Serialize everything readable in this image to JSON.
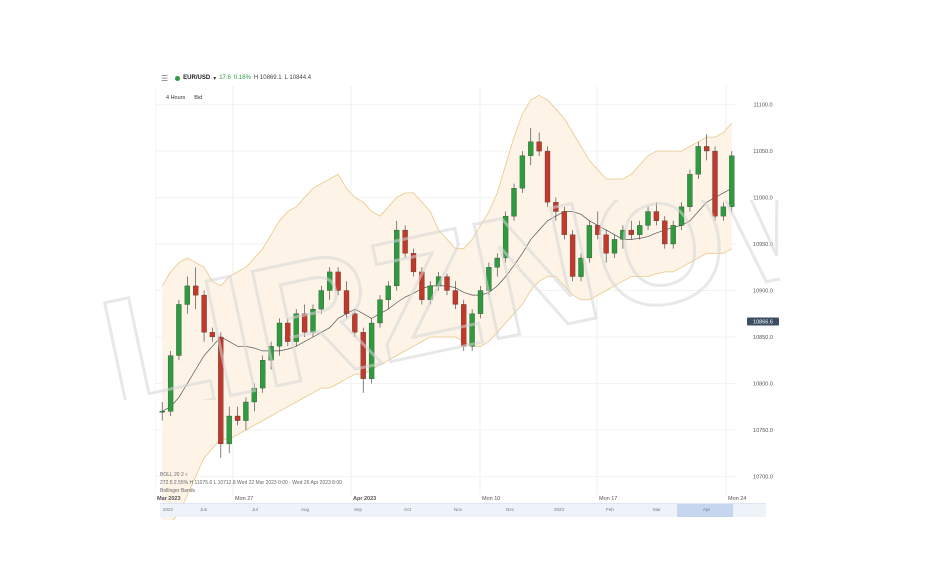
{
  "header": {
    "symbol": "EUR/USD",
    "change": "17.6",
    "change_pct": "0.16%",
    "high": "H 10869.1",
    "low": "L 10844.4"
  },
  "timeframe": {
    "interval": "4 Hours",
    "price_type": "Bid"
  },
  "price_axis": {
    "labels": [
      "11100.0",
      "11050.0",
      "11000.0",
      "10950.0",
      "10900.0",
      "10850.0",
      "10800.0",
      "10750.0",
      "10700.0"
    ],
    "current_price": "10866.6"
  },
  "time_axis": {
    "labels": [
      "Mar 2023",
      "Mon 27",
      "Apr 2023",
      "Mon 10",
      "Mon 17",
      "Mon 24"
    ]
  },
  "boll_legend": {
    "name": "BOLL",
    "period": "20",
    "mult": "2",
    "close_label": "x",
    "range_prefix": "272.5",
    "range_pct": "2.55%",
    "high": "H 11075.6",
    "low": "L 10712.8",
    "dates": "Wed 22 Mar 2023 0:00 - Wed 26 Apr 2023 8:00",
    "note": "Bollinger Bands"
  },
  "navigator": {
    "labels": [
      "2022",
      "Jun",
      "Jul",
      "Aug",
      "Sep",
      "Oct",
      "Nov",
      "Dec",
      "2023",
      "Feb",
      "Mar",
      "Apr"
    ]
  },
  "watermark": {
    "text": "LIRZNOW"
  },
  "colors": {
    "up": "#2e9b3f",
    "down": "#c0392b",
    "band": "#e8c98a",
    "band_fill": "#fdf3e7",
    "middle": "#555555"
  },
  "chart_data": {
    "type": "candlestick",
    "title": "",
    "ylim": [
      10680,
      11120
    ],
    "indicator": "Bollinger Bands (20, 2)",
    "candles": [
      [
        10770,
        10780,
        10760,
        10770
      ],
      [
        10770,
        10835,
        10765,
        10830
      ],
      [
        10830,
        10890,
        10825,
        10885
      ],
      [
        10885,
        10915,
        10875,
        10905
      ],
      [
        10905,
        10925,
        10880,
        10895
      ],
      [
        10895,
        10900,
        10845,
        10855
      ],
      [
        10855,
        10860,
        10845,
        10850
      ],
      [
        10850,
        10855,
        10720,
        10735
      ],
      [
        10735,
        10775,
        10725,
        10765
      ],
      [
        10765,
        10775,
        10755,
        10760
      ],
      [
        10760,
        10785,
        10750,
        10780
      ],
      [
        10780,
        10800,
        10770,
        10795
      ],
      [
        10795,
        10830,
        10790,
        10825
      ],
      [
        10825,
        10845,
        10815,
        10840
      ],
      [
        10840,
        10870,
        10830,
        10865
      ],
      [
        10865,
        10870,
        10840,
        10845
      ],
      [
        10845,
        10880,
        10840,
        10875
      ],
      [
        10875,
        10885,
        10850,
        10855
      ],
      [
        10855,
        10885,
        10850,
        10880
      ],
      [
        10880,
        10905,
        10875,
        10900
      ],
      [
        10900,
        10925,
        10890,
        10920
      ],
      [
        10920,
        10925,
        10895,
        10900
      ],
      [
        10900,
        10910,
        10870,
        10875
      ],
      [
        10875,
        10880,
        10850,
        10855
      ],
      [
        10855,
        10860,
        10790,
        10805
      ],
      [
        10805,
        10870,
        10800,
        10865
      ],
      [
        10865,
        10895,
        10860,
        10890
      ],
      [
        10890,
        10910,
        10880,
        10905
      ],
      [
        10905,
        10975,
        10900,
        10965
      ],
      [
        10965,
        10970,
        10935,
        10940
      ],
      [
        10940,
        10945,
        10915,
        10920
      ],
      [
        10920,
        10925,
        10885,
        10890
      ],
      [
        10890,
        10910,
        10885,
        10905
      ],
      [
        10905,
        10920,
        10900,
        10915
      ],
      [
        10915,
        10918,
        10895,
        10900
      ],
      [
        10900,
        10910,
        10880,
        10885
      ],
      [
        10885,
        10890,
        10835,
        10840
      ],
      [
        10840,
        10880,
        10835,
        10875
      ],
      [
        10875,
        10905,
        10870,
        10900
      ],
      [
        10900,
        10930,
        10895,
        10925
      ],
      [
        10925,
        10940,
        10915,
        10935
      ],
      [
        10935,
        10985,
        10930,
        10980
      ],
      [
        10980,
        11015,
        10975,
        11010
      ],
      [
        11010,
        11050,
        11005,
        11045
      ],
      [
        11045,
        11075,
        11035,
        11060
      ],
      [
        11060,
        11070,
        11045,
        11050
      ],
      [
        11050,
        11055,
        10990,
        10995
      ],
      [
        10995,
        11000,
        10975,
        10985
      ],
      [
        10985,
        10990,
        10955,
        10960
      ],
      [
        10960,
        10965,
        10910,
        10915
      ],
      [
        10915,
        10940,
        10910,
        10935
      ],
      [
        10935,
        10975,
        10930,
        10970
      ],
      [
        10970,
        10985,
        10955,
        10960
      ],
      [
        10960,
        10965,
        10930,
        10940
      ],
      [
        10940,
        10960,
        10935,
        10955
      ],
      [
        10955,
        10970,
        10945,
        10965
      ],
      [
        10965,
        10975,
        10955,
        10960
      ],
      [
        10960,
        10975,
        10955,
        10970
      ],
      [
        10970,
        10990,
        10965,
        10985
      ],
      [
        10985,
        10995,
        10970,
        10975
      ],
      [
        10975,
        10980,
        10945,
        10950
      ],
      [
        10950,
        10975,
        10945,
        10970
      ],
      [
        10970,
        10995,
        10965,
        10990
      ],
      [
        10990,
        11030,
        10985,
        11025
      ],
      [
        11025,
        11060,
        11020,
        11055
      ],
      [
        11055,
        11068,
        11040,
        11050
      ],
      [
        11050,
        11055,
        10975,
        10980
      ],
      [
        10980,
        10995,
        10975,
        10990
      ],
      [
        10990,
        11050,
        10985,
        11045
      ]
    ],
    "bands": {
      "upper": [
        10905,
        10920,
        10930,
        10935,
        10930,
        10925,
        10910,
        10905,
        10915,
        10920,
        10925,
        10935,
        10945,
        10960,
        10975,
        10985,
        10990,
        11000,
        11010,
        11015,
        11020,
        11025,
        11010,
        11000,
        10995,
        10985,
        10980,
        10990,
        11000,
        11005,
        11005,
        10995,
        10985,
        10965,
        10955,
        10945,
        10945,
        10955,
        10970,
        10985,
        11005,
        11035,
        11065,
        11090,
        11105,
        11110,
        11105,
        11095,
        11085,
        11070,
        11055,
        11040,
        11030,
        11020,
        11020,
        11020,
        11025,
        11035,
        11045,
        11050,
        11050,
        11050,
        11050,
        11055,
        11060,
        11065,
        11065,
        11070,
        11080
      ],
      "middle": [
        10770,
        10775,
        10785,
        10800,
        10815,
        10830,
        10840,
        10850,
        10845,
        10840,
        10840,
        10838,
        10835,
        10835,
        10835,
        10837,
        10840,
        10845,
        10850,
        10855,
        10860,
        10870,
        10875,
        10880,
        10875,
        10870,
        10875,
        10880,
        10887,
        10893,
        10897,
        10902,
        10905,
        10905,
        10905,
        10903,
        10898,
        10895,
        10895,
        10898,
        10905,
        10915,
        10927,
        10940,
        10955,
        10965,
        10975,
        10980,
        10985,
        10985,
        10982,
        10975,
        10970,
        10965,
        10960,
        10955,
        10955,
        10956,
        10958,
        10962,
        10965,
        10968,
        10970,
        10975,
        10985,
        10995,
        11000,
        11005,
        11010
      ],
      "lower": [
        10650,
        10650,
        10660,
        10680,
        10700,
        10720,
        10730,
        10740,
        10740,
        10745,
        10750,
        10755,
        10760,
        10765,
        10770,
        10775,
        10780,
        10785,
        10790,
        10795,
        10795,
        10800,
        10805,
        10810,
        10810,
        10815,
        10820,
        10825,
        10830,
        10835,
        10840,
        10845,
        10850,
        10850,
        10850,
        10850,
        10845,
        10840,
        10840,
        10845,
        10855,
        10865,
        10875,
        10885,
        10900,
        10910,
        10915,
        10915,
        10905,
        10895,
        10890,
        10890,
        10895,
        10900,
        10905,
        10910,
        10915,
        10915,
        10915,
        10918,
        10920,
        10920,
        10925,
        10930,
        10935,
        10940,
        10940,
        10940,
        10945
      ]
    }
  }
}
